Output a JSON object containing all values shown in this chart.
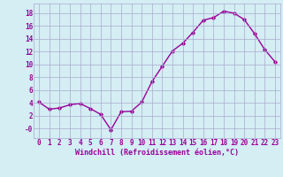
{
  "x": [
    0,
    1,
    2,
    3,
    4,
    5,
    6,
    7,
    8,
    9,
    10,
    11,
    12,
    13,
    14,
    15,
    16,
    17,
    18,
    19,
    20,
    21,
    22,
    23
  ],
  "y": [
    4.1,
    3.0,
    3.2,
    3.7,
    3.9,
    3.1,
    2.2,
    -0.2,
    2.6,
    2.7,
    4.1,
    7.3,
    9.7,
    12.1,
    13.3,
    15.0,
    16.9,
    17.3,
    18.3,
    18.0,
    17.0,
    14.8,
    12.3,
    10.4
  ],
  "line_color": "#990099",
  "bg_color": "#d4eef4",
  "grid_color": "#aaaacc",
  "xlabel": "Windchill (Refroidissement éolien,°C)",
  "xlabel_color": "#990099",
  "xlabel_fontsize": 6.0,
  "tick_color": "#990099",
  "tick_fontsize": 5.5,
  "ytick_labels": [
    "-0",
    "2",
    "4",
    "6",
    "8",
    "10",
    "12",
    "14",
    "16",
    "18"
  ],
  "ytick_values": [
    0,
    2,
    4,
    6,
    8,
    10,
    12,
    14,
    16,
    18
  ],
  "ylim": [
    -1.5,
    19.5
  ],
  "xlim": [
    -0.5,
    23.5
  ],
  "marker": "D",
  "marker_size": 1.8,
  "linewidth": 1.0
}
